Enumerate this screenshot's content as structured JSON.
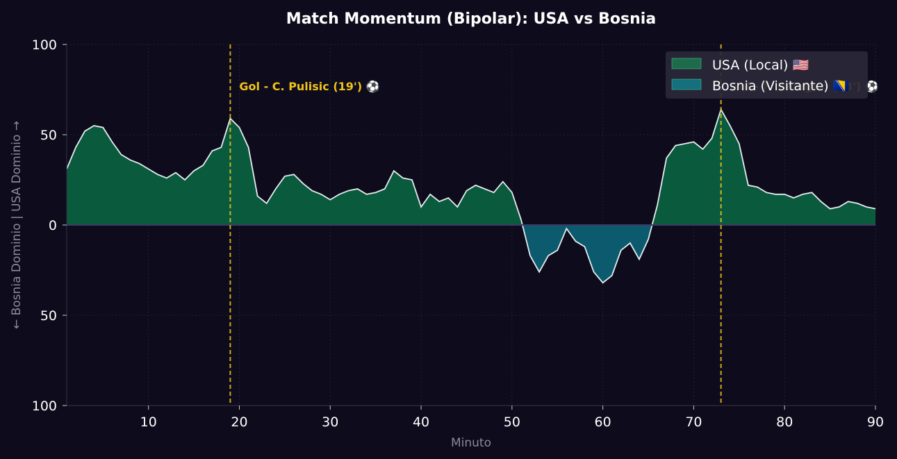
{
  "chart_data": {
    "type": "area",
    "title": "Match Momentum (Bipolar): USA vs Bosnia",
    "xlabel": "Minuto",
    "ylabel": "← Bosnia Dominio | USA Dominio →",
    "xlim": [
      1,
      90
    ],
    "ylim": [
      -100,
      100
    ],
    "x_ticks": [
      10,
      20,
      30,
      40,
      50,
      60,
      70,
      80,
      90
    ],
    "x_tick_labels": [
      "10",
      "20",
      "30",
      "40",
      "50",
      "60",
      "70",
      "80",
      "90"
    ],
    "y_ticks": [
      -100,
      -50,
      0,
      50,
      100
    ],
    "y_tick_labels": [
      "100",
      "50",
      "0",
      "50",
      "100"
    ],
    "grid": true,
    "legend_position": "top-right",
    "series": [
      {
        "name": "USA (Local) 🇺🇸",
        "color": "#0a5a3e",
        "legend_color": "#1e6b4c",
        "fill": "positive"
      },
      {
        "name": "Bosnia (Visitante) 🇧🇦",
        "color": "#0b5a6e",
        "legend_color": "#15707e",
        "fill": "negative"
      }
    ],
    "line_color": "#e8eef0",
    "x": [
      1,
      2,
      3,
      4,
      5,
      6,
      7,
      8,
      9,
      10,
      11,
      12,
      13,
      14,
      15,
      16,
      17,
      18,
      19,
      20,
      21,
      22,
      23,
      24,
      25,
      26,
      27,
      28,
      29,
      30,
      31,
      32,
      33,
      34,
      35,
      36,
      37,
      38,
      39,
      40,
      41,
      42,
      43,
      44,
      45,
      46,
      47,
      48,
      49,
      50,
      51,
      52,
      53,
      54,
      55,
      56,
      57,
      58,
      59,
      60,
      61,
      62,
      63,
      64,
      65,
      66,
      67,
      68,
      69,
      70,
      71,
      72,
      73,
      74,
      75,
      76,
      77,
      78,
      79,
      80,
      81,
      82,
      83,
      84,
      85,
      86,
      87,
      88,
      89,
      90
    ],
    "values": [
      31,
      43,
      52,
      55,
      54,
      46,
      39,
      36,
      34,
      31,
      28,
      26,
      29,
      25,
      30,
      33,
      41,
      43,
      59,
      54,
      43,
      16,
      12,
      20,
      27,
      28,
      23,
      19,
      17,
      14,
      17,
      19,
      20,
      17,
      18,
      20,
      30,
      26,
      25,
      10,
      17,
      13,
      15,
      10,
      19,
      22,
      20,
      18,
      24,
      18,
      3,
      -17,
      -26,
      -17,
      -14,
      -2,
      -9,
      -12,
      -26,
      -32,
      -28,
      -14,
      -10,
      -19,
      -8,
      11,
      37,
      44,
      45,
      46,
      42,
      48,
      64,
      55,
      45,
      22,
      21,
      18,
      17,
      17,
      15,
      17,
      18,
      13,
      9,
      10,
      13,
      12,
      10,
      9
    ],
    "annotations": [
      {
        "x": 19,
        "label": "Gol - C. Pulisic (19') ⚽",
        "color": "#f0c419"
      },
      {
        "x": 73,
        "label": "Gol - F. Balogun (73') ⚽",
        "color": "#f0c419"
      }
    ]
  }
}
